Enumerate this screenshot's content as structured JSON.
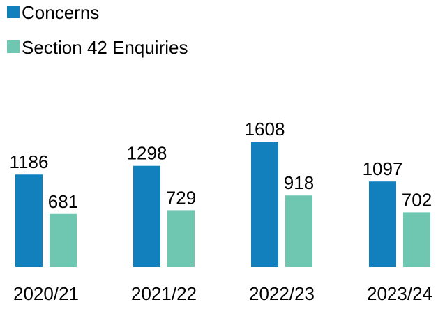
{
  "chart_data": {
    "type": "bar",
    "categories": [
      "2020/21",
      "2021/22",
      "2022/23",
      "2023/24"
    ],
    "series": [
      {
        "name": "Concerns",
        "color": "#1380be",
        "values": [
          1186,
          1298,
          1608,
          1097
        ]
      },
      {
        "name": "Section 42 Enquiries",
        "color": "#70c7b1",
        "values": [
          681,
          729,
          918,
          702
        ]
      }
    ]
  }
}
